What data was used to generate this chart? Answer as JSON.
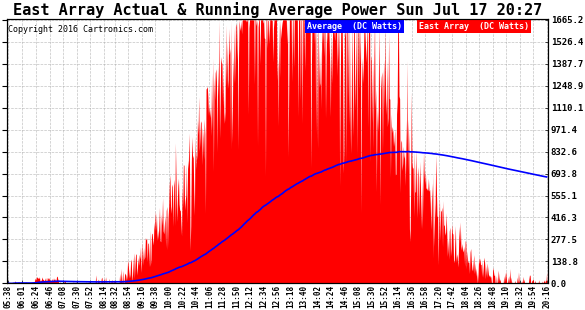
{
  "title": "East Array Actual & Running Average Power Sun Jul 17 20:27",
  "copyright": "Copyright 2016 Cartronics.com",
  "ylabel_right_ticks": [
    0.0,
    138.8,
    277.5,
    416.3,
    555.1,
    693.8,
    832.6,
    971.4,
    1110.1,
    1248.9,
    1387.7,
    1526.4,
    1665.2
  ],
  "ymax": 1665.2,
  "ymin": 0.0,
  "bg_color": "#ffffff",
  "plot_bg_color": "#ffffff",
  "grid_color": "#aaaaaa",
  "red_color": "#ff0000",
  "blue_color": "#0000ff",
  "title_fontsize": 11,
  "copyright_fontsize": 6,
  "xtick_fontsize": 5.5,
  "ytick_fontsize": 6.5,
  "legend_avg_bg": "#0000ff",
  "legend_east_bg": "#ff0000",
  "x_labels": [
    "05:38",
    "06:01",
    "06:24",
    "06:46",
    "07:08",
    "07:30",
    "07:52",
    "08:14",
    "08:32",
    "08:54",
    "09:16",
    "09:38",
    "10:00",
    "10:22",
    "10:44",
    "11:06",
    "11:28",
    "11:50",
    "12:12",
    "12:34",
    "12:56",
    "13:18",
    "13:40",
    "14:02",
    "14:24",
    "14:46",
    "15:08",
    "15:30",
    "15:52",
    "16:14",
    "16:36",
    "16:58",
    "17:20",
    "17:42",
    "18:04",
    "18:26",
    "18:48",
    "19:10",
    "19:32",
    "19:54",
    "20:16"
  ]
}
